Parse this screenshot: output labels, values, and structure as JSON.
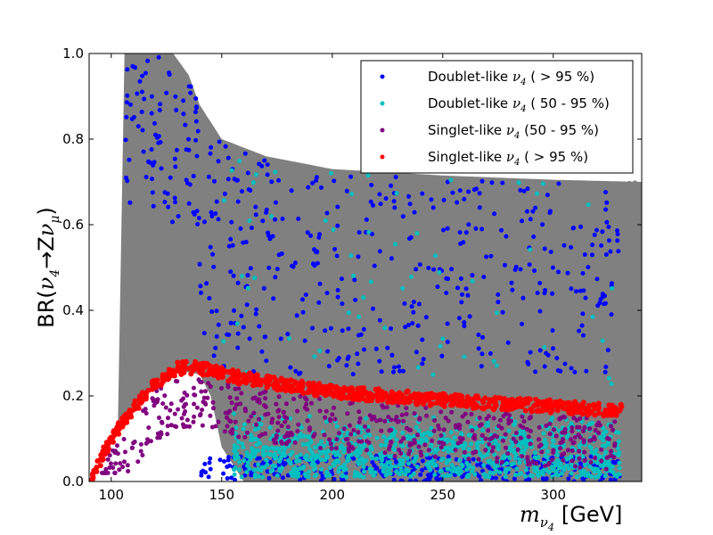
{
  "chart_data": {
    "type": "scatter",
    "title": "",
    "xlabel": {
      "symbol": "m",
      "subscript": "ν",
      "subsubscript": "4",
      "unit": "[GeV]"
    },
    "ylabel": {
      "prefix": "BR(",
      "expr_parts": [
        "ν",
        "4",
        "→Z",
        "ν",
        "μ"
      ],
      "suffix": ")"
    },
    "xlim": [
      90,
      340
    ],
    "ylim": [
      0.0,
      1.0
    ],
    "xticks": [
      100,
      150,
      200,
      250,
      300
    ],
    "yticks": [
      0.0,
      0.2,
      0.4,
      0.6,
      0.8,
      1.0
    ],
    "ytick_labels": [
      "0.0",
      "0.2",
      "0.4",
      "0.6",
      "0.8",
      "1.0"
    ],
    "legend_position": "top-right",
    "grid": false,
    "background_series": {
      "color": "#808080",
      "region": {
        "lower_curve": [
          [
            90,
            0.0
          ],
          [
            95,
            0.05
          ],
          [
            100,
            0.1
          ],
          [
            110,
            0.17
          ],
          [
            120,
            0.23
          ],
          [
            130,
            0.26
          ],
          [
            140,
            0.25
          ],
          [
            145,
            0.2
          ],
          [
            150,
            0.08
          ],
          [
            160,
            0.0
          ],
          [
            340,
            0.0
          ]
        ],
        "upper_curve": [
          [
            103,
            0.12
          ],
          [
            106,
            1.0
          ],
          [
            128,
            1.0
          ],
          [
            135,
            0.95
          ],
          [
            140,
            0.88
          ],
          [
            150,
            0.8
          ],
          [
            170,
            0.76
          ],
          [
            200,
            0.73
          ],
          [
            250,
            0.715
          ],
          [
            300,
            0.705
          ],
          [
            340,
            0.7
          ]
        ]
      }
    },
    "series": [
      {
        "name": {
          "prefix": "Doublet-like ",
          "sym": "ν",
          "sub": "4",
          "suffix": " ( > 95 %)"
        },
        "color": "#0000ff",
        "points_band": {
          "x_range": [
            108,
            330
          ],
          "y_range": [
            0.0,
            0.98
          ],
          "note": "scattered above 0.25 and dense near 0"
        },
        "count": 700
      },
      {
        "name": {
          "prefix": "Doublet-like ",
          "sym": "ν",
          "sub": "4",
          "suffix": " ( 50 - 95 %)"
        },
        "color": "#00bfbf",
        "points_band": {
          "x_range": [
            150,
            330
          ],
          "y_range": [
            0.0,
            0.15
          ]
        },
        "count": 900
      },
      {
        "name": {
          "prefix": "Singlet-like ",
          "sym": "ν",
          "sub": "4",
          "suffix": " (50 - 95 %)"
        },
        "color": "#800080",
        "points_band": {
          "x_range": [
            95,
            330
          ],
          "y_range": [
            0.05,
            0.26
          ]
        },
        "count": 500
      },
      {
        "name": {
          "prefix": "Singlet-like ",
          "sym": "ν",
          "sub": "4",
          "suffix": " ( > 95 %)"
        },
        "color": "#ff0000",
        "curve": [
          [
            91,
            0.0
          ],
          [
            95,
            0.05
          ],
          [
            100,
            0.1
          ],
          [
            110,
            0.17
          ],
          [
            120,
            0.23
          ],
          [
            130,
            0.265
          ],
          [
            140,
            0.265
          ],
          [
            160,
            0.24
          ],
          [
            200,
            0.21
          ],
          [
            250,
            0.19
          ],
          [
            300,
            0.175
          ],
          [
            330,
            0.165
          ]
        ],
        "count": 800
      }
    ]
  }
}
